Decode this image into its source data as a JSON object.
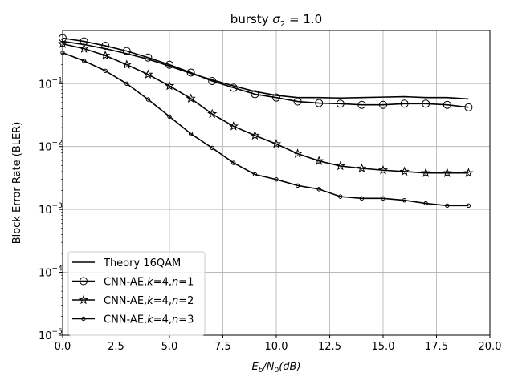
{
  "chart_data": {
    "type": "line",
    "title_prefix": "bursty ",
    "title_symbol": "σ",
    "title_subscript": "2",
    "title_suffix": " = 1.0",
    "xlabel_main": "E",
    "xlabel_sub1": "b",
    "xlabel_mid": "/N",
    "xlabel_sub2": "0",
    "xlabel_end": "(dB)",
    "ylabel": "Block Error Rate (BLER)",
    "xlim": [
      0,
      20
    ],
    "ylim": [
      1e-05,
      0.7
    ],
    "yscale": "log",
    "grid": true,
    "legend_position": "lower-left",
    "x_ticks": [
      "0.0",
      "2.5",
      "5.0",
      "7.5",
      "10.0",
      "12.5",
      "15.0",
      "17.5",
      "20.0"
    ],
    "y_ticks": [
      {
        "base": "10",
        "exp": "−5"
      },
      {
        "base": "10",
        "exp": "−4"
      },
      {
        "base": "10",
        "exp": "−3"
      },
      {
        "base": "10",
        "exp": "−2"
      },
      {
        "base": "10",
        "exp": "−1"
      }
    ],
    "series": [
      {
        "name": "Theory 16QAM",
        "legend_parts": [
          "Theory 16QAM"
        ],
        "marker": "none",
        "x": [
          0,
          1,
          2,
          3,
          4,
          5,
          6,
          7,
          8,
          9,
          10,
          11,
          12,
          13,
          14,
          15,
          16,
          17,
          18,
          19
        ],
        "y": [
          0.47,
          0.42,
          0.36,
          0.3,
          0.245,
          0.19,
          0.145,
          0.115,
          0.092,
          0.075,
          0.065,
          0.06,
          0.06,
          0.059,
          0.06,
          0.061,
          0.062,
          0.06,
          0.06,
          0.057
        ]
      },
      {
        "name": "CNN-AE,k=4,n=1",
        "legend_parts": [
          "CNN-AE,",
          "k",
          "=4,",
          "n",
          "=1"
        ],
        "marker": "circle",
        "x": [
          0,
          1,
          2,
          3,
          4,
          5,
          6,
          7,
          8,
          9,
          10,
          11,
          12,
          13,
          14,
          15,
          16,
          17,
          18,
          19
        ],
        "y": [
          0.53,
          0.47,
          0.4,
          0.33,
          0.26,
          0.2,
          0.15,
          0.11,
          0.086,
          0.068,
          0.06,
          0.052,
          0.049,
          0.048,
          0.046,
          0.046,
          0.048,
          0.048,
          0.046,
          0.042
        ]
      },
      {
        "name": "CNN-AE,k=4,n=2",
        "legend_parts": [
          "CNN-AE,",
          "k",
          "=4,",
          "n",
          "=2"
        ],
        "marker": "star",
        "x": [
          0,
          1,
          2,
          3,
          4,
          5,
          6,
          7,
          8,
          9,
          10,
          11,
          12,
          13,
          14,
          15,
          16,
          17,
          18,
          19
        ],
        "y": [
          0.43,
          0.36,
          0.28,
          0.2,
          0.14,
          0.092,
          0.058,
          0.033,
          0.021,
          0.015,
          0.011,
          0.0077,
          0.0059,
          0.0049,
          0.0045,
          0.0042,
          0.004,
          0.0038,
          0.0038,
          0.0038
        ]
      },
      {
        "name": "CNN-AE,k=4,n=3",
        "legend_parts": [
          "CNN-AE,",
          "k",
          "=4,",
          "n",
          "=3"
        ],
        "marker": "dot",
        "x": [
          0,
          1,
          2,
          3,
          4,
          5,
          6,
          7,
          8,
          9,
          10,
          11,
          12,
          13,
          14,
          15,
          16,
          17,
          18,
          19
        ],
        "y": [
          0.31,
          0.23,
          0.16,
          0.1,
          0.056,
          0.03,
          0.016,
          0.0095,
          0.0055,
          0.0036,
          0.003,
          0.0024,
          0.0021,
          0.0016,
          0.0015,
          0.0015,
          0.0014,
          0.00125,
          0.00115,
          0.00115
        ]
      }
    ]
  }
}
